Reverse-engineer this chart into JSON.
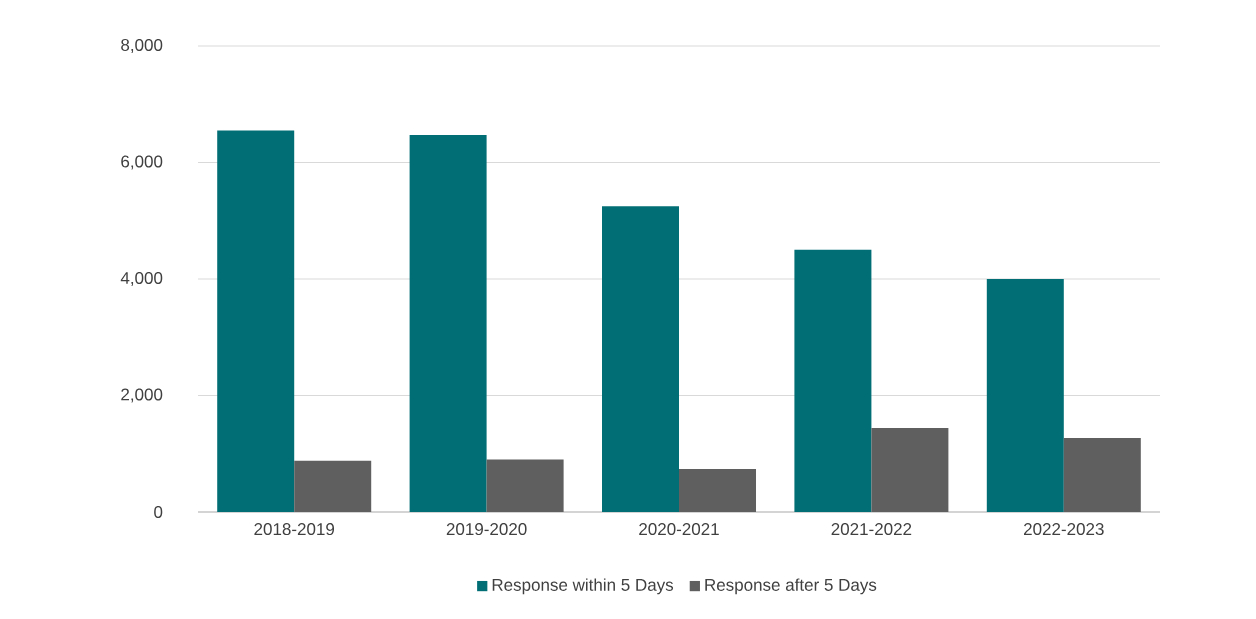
{
  "chart_data": {
    "type": "bar",
    "categories": [
      "2018-2019",
      "2019-2020",
      "2020-2021",
      "2021-2022",
      "2022-2023"
    ],
    "series": [
      {
        "name": "Response within 5 Days",
        "color": "#006e74",
        "values": [
          6550,
          6470,
          5250,
          4500,
          4000
        ]
      },
      {
        "name": "Response after 5 Days",
        "color": "#5f5f5f",
        "values": [
          880,
          900,
          740,
          1440,
          1270
        ]
      }
    ],
    "ylim": [
      0,
      8000
    ],
    "yticks": [
      {
        "value": 0,
        "label": "0"
      },
      {
        "value": 2000,
        "label": "2,000"
      },
      {
        "value": 4000,
        "label": "4,000"
      },
      {
        "value": 6000,
        "label": "6,000"
      },
      {
        "value": 8000,
        "label": "8,000"
      }
    ],
    "grid": "y",
    "legend": "bottom"
  }
}
